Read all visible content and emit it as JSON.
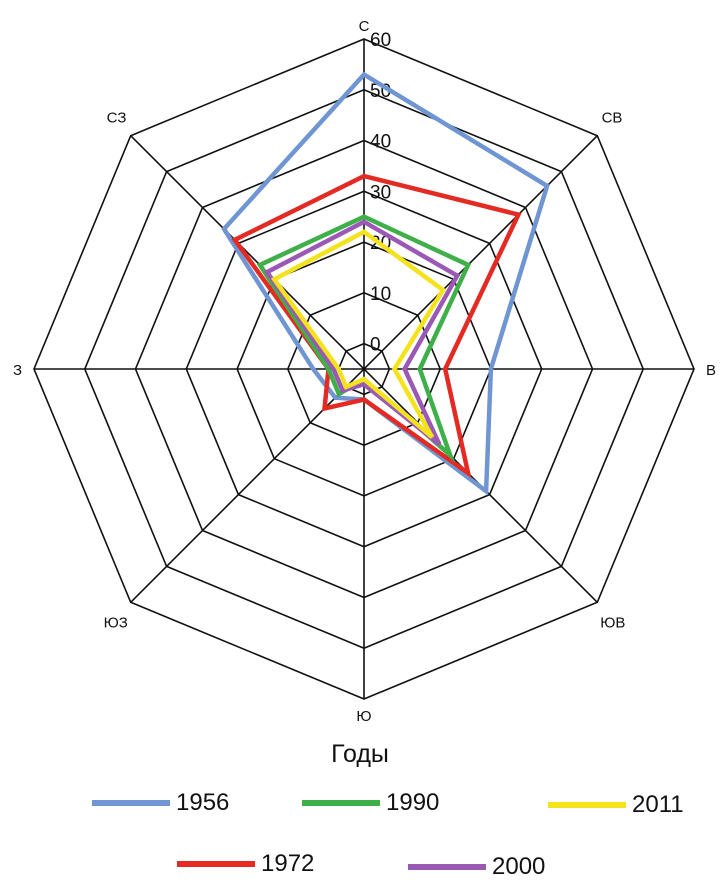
{
  "chart_data": {
    "type": "radar",
    "directions": [
      "С",
      "СВ",
      "В",
      "ЮВ",
      "Ю",
      "ЮЗ",
      "З",
      "СЗ"
    ],
    "r_ticks": [
      "0",
      "10",
      "20",
      "30",
      "40",
      "50",
      "60"
    ],
    "r_range": [
      -5,
      60
    ],
    "legend_title": "Годы",
    "series": [
      {
        "name": "1956",
        "color": "#6F95D2",
        "values": [
          53,
          46,
          20,
          29,
          1,
          3,
          5,
          34
        ]
      },
      {
        "name": "1972",
        "color": "#E32B24",
        "values": [
          33,
          38,
          11,
          24,
          1,
          6,
          2,
          31
        ]
      },
      {
        "name": "1990",
        "color": "#3FAF4A",
        "values": [
          25,
          24,
          6,
          19,
          -3,
          2,
          2,
          24
        ]
      },
      {
        "name": "2000",
        "color": "#9B59B6",
        "values": [
          24,
          21,
          3,
          16,
          -2,
          1,
          1,
          22
        ]
      },
      {
        "name": "2011",
        "color": "#F4E21C",
        "values": [
          22,
          17,
          1,
          14,
          -3,
          0,
          0,
          20
        ]
      }
    ]
  }
}
